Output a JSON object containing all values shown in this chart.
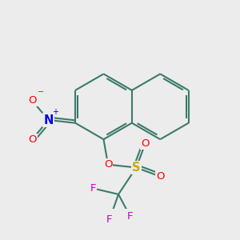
{
  "bg_color": "#ececec",
  "bond_color": "#3d7a6a",
  "bond_width": 1.5,
  "atom_colors": {
    "O": "#ff0000",
    "N": "#0000ee",
    "S": "#ccaa00",
    "F": "#cc00cc",
    "C": "#3d7a6a"
  },
  "figsize": [
    3.0,
    3.0
  ],
  "dpi": 100
}
